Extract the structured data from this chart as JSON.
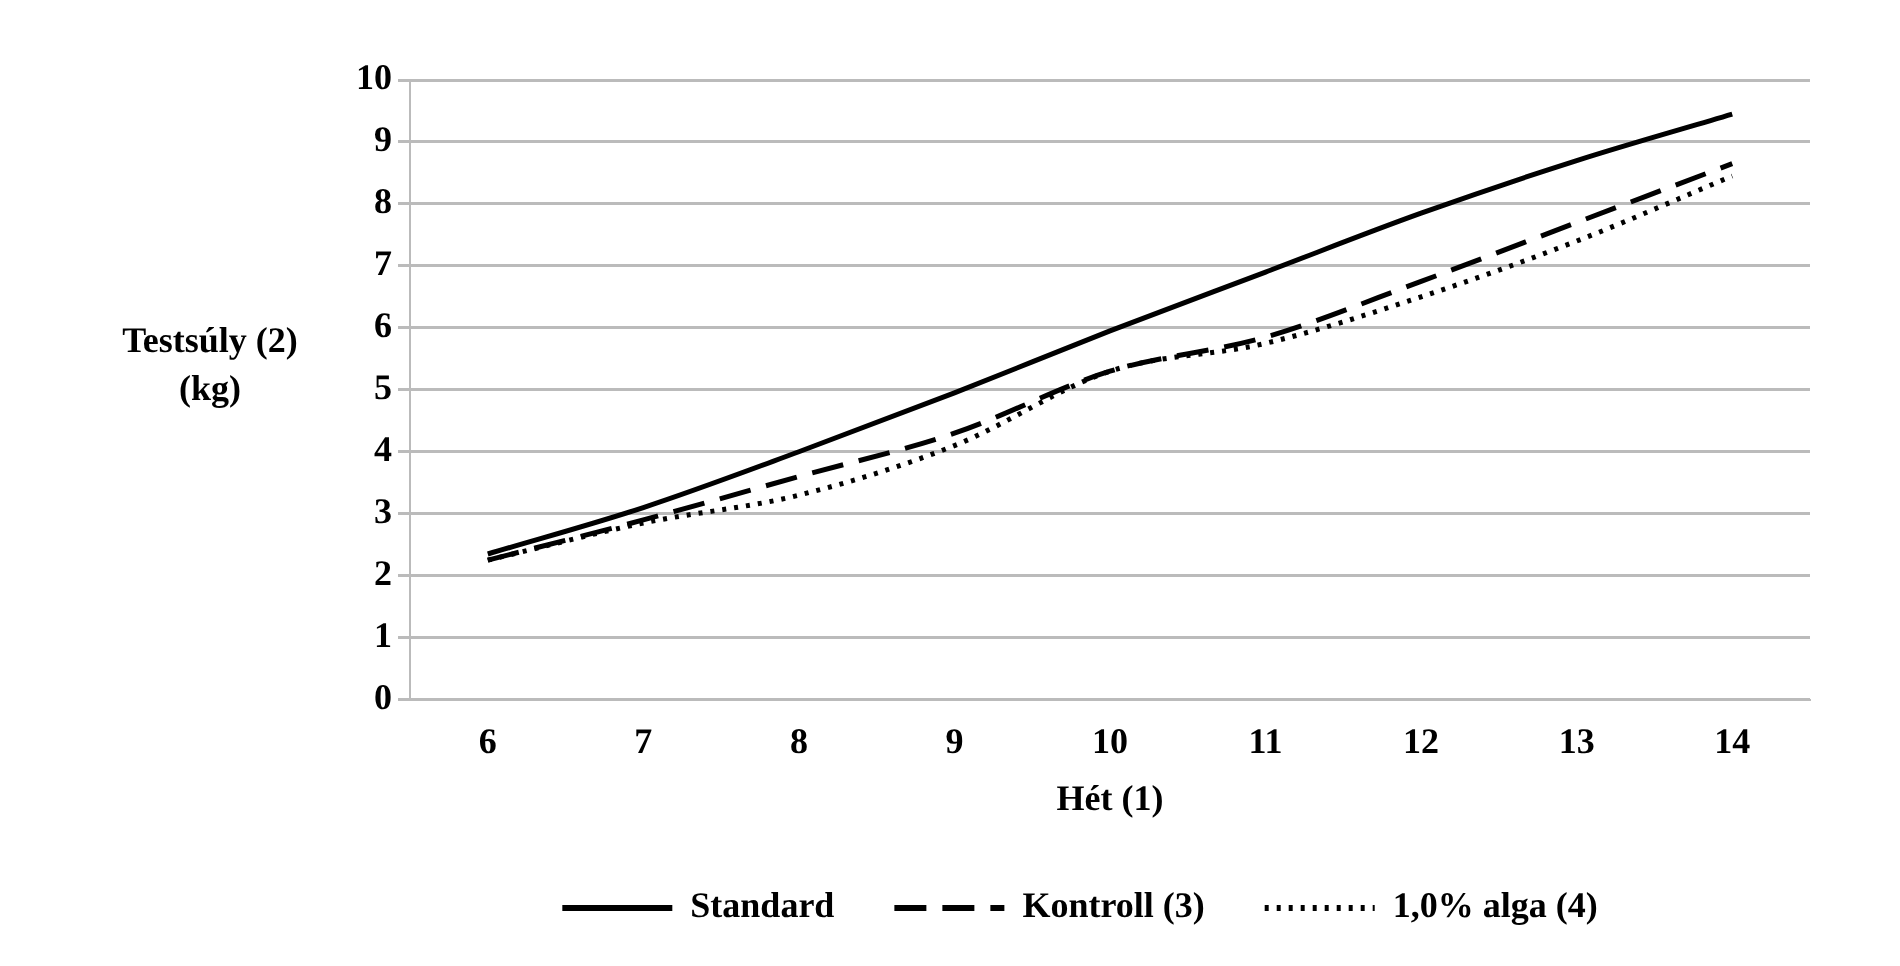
{
  "chart_data": {
    "type": "line",
    "xlabel": "Hét (1)",
    "ylabel": "Testsúly (2) (kg)",
    "categories": [
      "6",
      "7",
      "8",
      "9",
      "10",
      "11",
      "12",
      "13",
      "14"
    ],
    "series": [
      {
        "name": "Standard",
        "color": "#000000",
        "line_style": "solid",
        "values": [
          2.35,
          3.1,
          4.0,
          4.95,
          5.95,
          6.9,
          7.85,
          8.7,
          9.45
        ]
      },
      {
        "name": "Kontroll (3)",
        "color": "#000000",
        "line_style": "dashed",
        "values": [
          2.25,
          2.9,
          3.6,
          4.3,
          5.3,
          5.85,
          6.75,
          7.7,
          8.65
        ]
      },
      {
        "name": "1,0% alga (4)",
        "color": "#000000",
        "line_style": "dotted",
        "values": [
          2.25,
          2.85,
          3.3,
          4.1,
          5.3,
          5.75,
          6.5,
          7.4,
          8.45
        ]
      }
    ],
    "ylim": [
      0,
      10
    ],
    "yticks": [
      0,
      1,
      2,
      3,
      4,
      5,
      6,
      7,
      8,
      9,
      10
    ],
    "grid": "y",
    "legend": "bottom",
    "marker": "none"
  }
}
